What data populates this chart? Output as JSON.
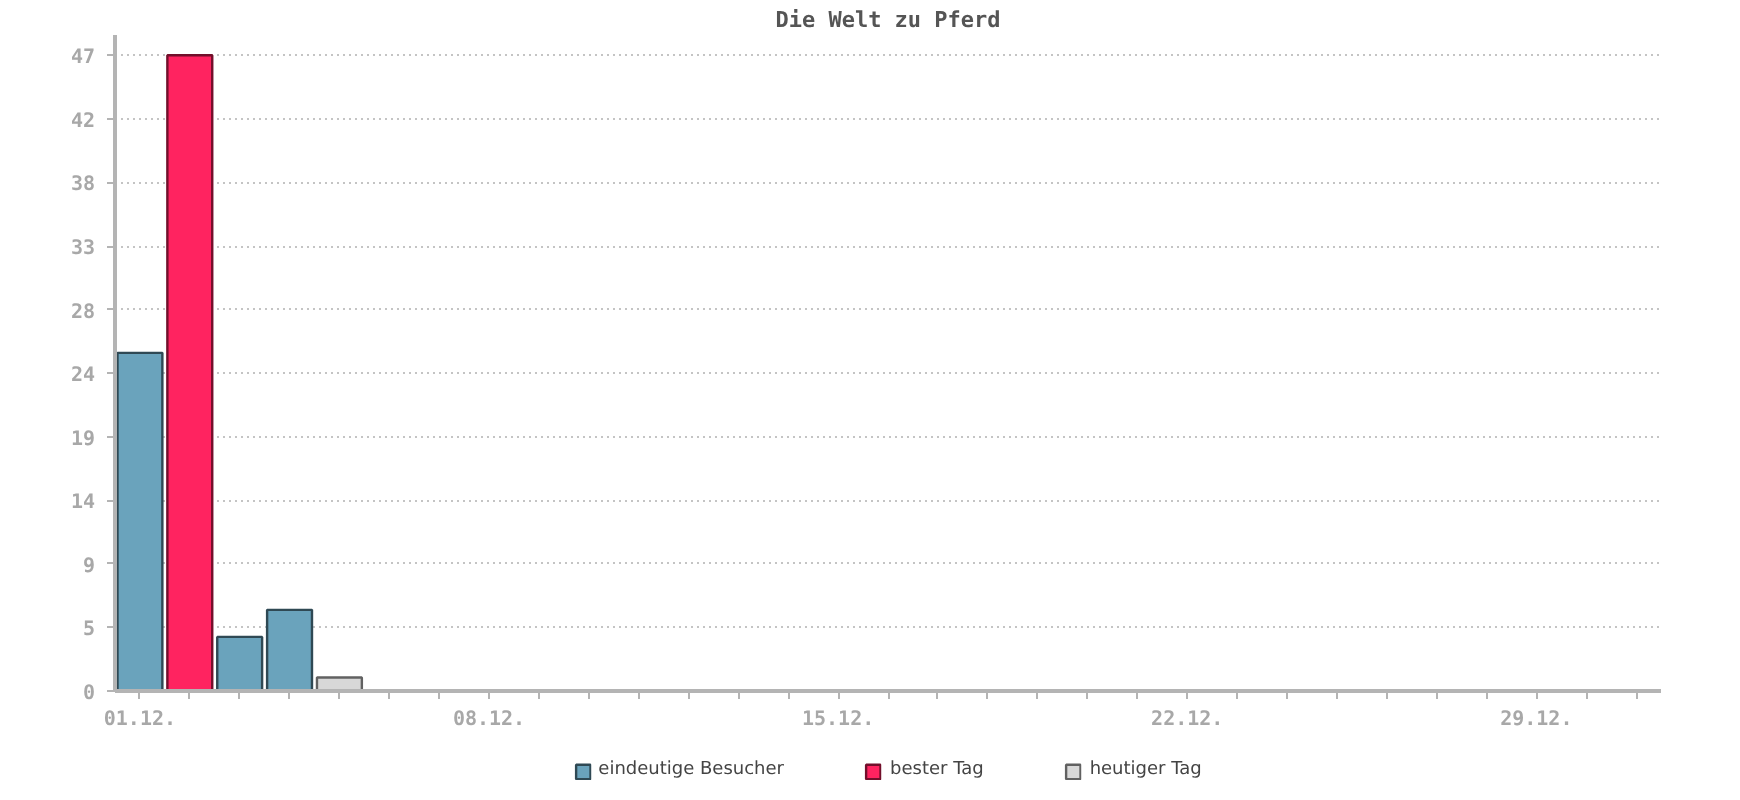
{
  "chart_data": {
    "type": "bar",
    "title": "Die Welt zu Pferd",
    "categories": [
      "01.12.",
      null,
      null,
      null,
      null,
      null,
      null,
      "08.12.",
      null,
      null,
      null,
      null,
      null,
      null,
      "15.12.",
      null,
      null,
      null,
      null,
      null,
      null,
      "22.12.",
      null,
      null,
      null,
      null,
      null,
      null,
      "29.12.",
      null,
      null
    ],
    "series": [
      {
        "name": "eindeutige Besucher",
        "color": "#6aa3bc",
        "values": [
          25,
          null,
          4,
          6,
          null,
          null,
          null,
          null,
          null,
          null,
          null,
          null,
          null,
          null,
          null,
          null,
          null,
          null,
          null,
          null,
          null,
          null,
          null,
          null,
          null,
          null,
          null,
          null,
          null,
          null,
          null
        ]
      },
      {
        "name": "bester Tag",
        "color": "#ff2360",
        "values": [
          null,
          47,
          null,
          null,
          null,
          null,
          null,
          null,
          null,
          null,
          null,
          null,
          null,
          null,
          null,
          null,
          null,
          null,
          null,
          null,
          null,
          null,
          null,
          null,
          null,
          null,
          null,
          null,
          null,
          null,
          null
        ]
      },
      {
        "name": "heutiger Tag",
        "color": "#d8d8d8",
        "values": [
          null,
          null,
          null,
          null,
          1,
          null,
          null,
          null,
          null,
          null,
          null,
          null,
          null,
          null,
          null,
          null,
          null,
          null,
          null,
          null,
          null,
          null,
          null,
          null,
          null,
          null,
          null,
          null,
          null,
          null,
          null
        ]
      }
    ],
    "ylim": [
      0,
      48.5
    ],
    "yticks": [
      0,
      {
        "value": 4.7,
        "label": "5"
      },
      {
        "value": 9.4,
        "label": "9"
      },
      {
        "value": 14.1,
        "label": "14"
      },
      {
        "value": 18.8,
        "label": "19"
      },
      {
        "value": 23.5,
        "label": "24"
      },
      {
        "value": 28.2,
        "label": "28"
      },
      {
        "value": 32.9,
        "label": "33"
      },
      {
        "value": 37.6,
        "label": "38"
      },
      {
        "value": 42.3,
        "label": "42"
      },
      47
    ],
    "grid": "y",
    "legend": "bottom"
  }
}
